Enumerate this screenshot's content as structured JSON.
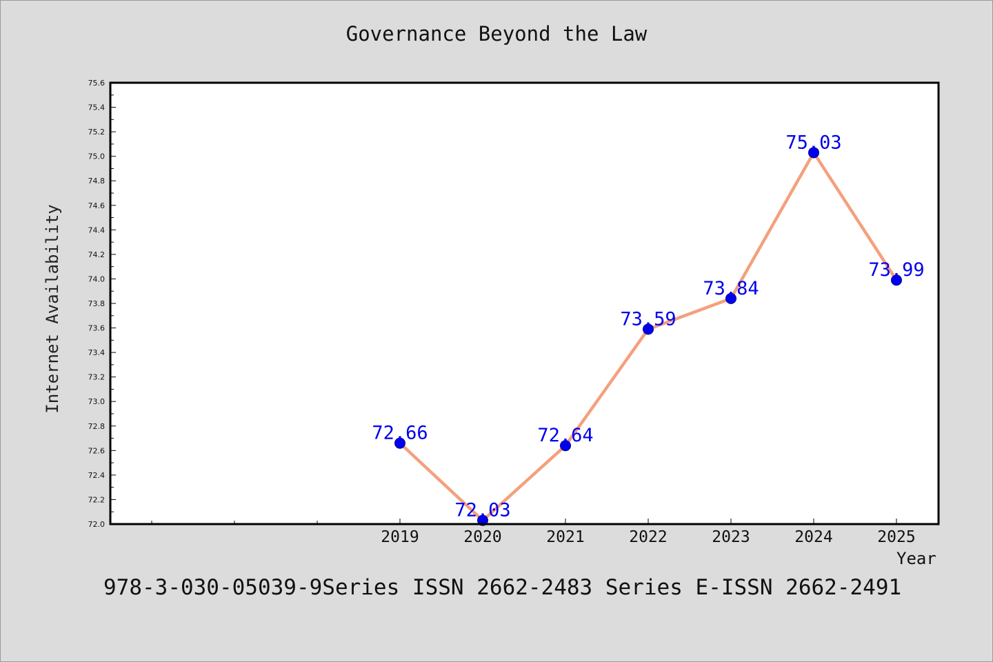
{
  "chart_data": {
    "type": "line",
    "title": "Governance Beyond the Law",
    "xlabel": "Year",
    "ylabel": "Internet Availability",
    "categories": [
      "2019",
      "2020",
      "2021",
      "2022",
      "2023",
      "2024",
      "2025"
    ],
    "series": [
      {
        "values": [
          72.66,
          72.03,
          72.64,
          73.59,
          73.84,
          75.03,
          73.99
        ]
      }
    ],
    "data_labels": [
      "72.66",
      "72.03",
      "72.64",
      "73.59",
      "73.84",
      "75.03",
      "73.99"
    ],
    "ylim": [
      72.0,
      75.6
    ],
    "yticks": [
      "72.0",
      "72.2",
      "72.4",
      "72.6",
      "72.8",
      "73.0",
      "73.2",
      "73.4",
      "73.6",
      "73.8",
      "74.0",
      "74.2",
      "74.4",
      "74.6",
      "74.8",
      "75.0",
      "75.2",
      "75.4",
      "75.6"
    ],
    "grid": false,
    "line_color": "#f4a07e",
    "marker_color": "#0000ee",
    "label_color": "#0000ee"
  },
  "footer": "978-3-030-05039-9Series ISSN 2662-2483 Series E-ISSN 2662-2491"
}
